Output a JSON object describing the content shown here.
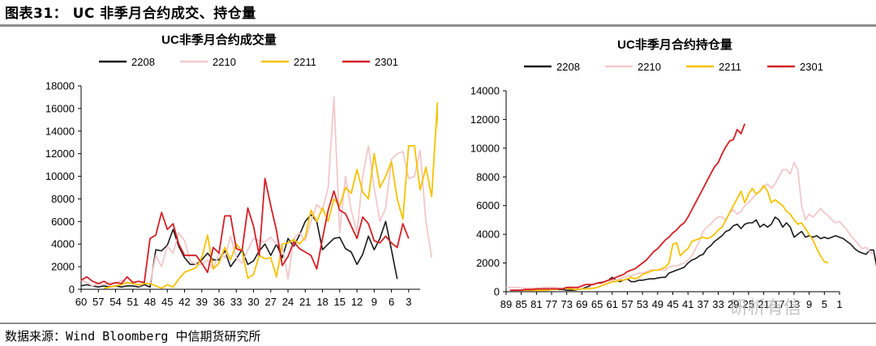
{
  "figure_title": "图表31： UC 非季月合约成交、持仓量",
  "source": "数据来源：Wind  Bloomberg  中信期货研究所",
  "watermark": "研析有信",
  "colors": {
    "2208": "#1a1a1a",
    "2210": "#f2c8cc",
    "2211": "#f7c200",
    "2301": "#d41f26"
  },
  "chart_data": [
    {
      "type": "line",
      "title": "UC非季月合约成交量",
      "xlabel": "",
      "ylabel": "",
      "ylim": [
        0,
        18000
      ],
      "yticks": [
        0,
        2000,
        4000,
        6000,
        8000,
        10000,
        12000,
        14000,
        16000,
        18000
      ],
      "x_tick_labels": [
        "60",
        "57",
        "54",
        "51",
        "48",
        "45",
        "42",
        "39",
        "36",
        "33",
        "30",
        "27",
        "24",
        "21",
        "18",
        "15",
        "12",
        "9",
        "6",
        "3"
      ],
      "x_start": 60,
      "x_end": 1,
      "legend": "top",
      "grid": false,
      "series": [
        {
          "name": "2208",
          "x_start": 60,
          "values": [
            300,
            400,
            300,
            200,
            300,
            200,
            300,
            200,
            300,
            300,
            200,
            400,
            200,
            3500,
            3400,
            3900,
            5300,
            3800,
            2800,
            2200,
            2200,
            2600,
            3200,
            2600,
            2600,
            3400,
            2000,
            2700,
            3500,
            2200,
            2500,
            3400,
            4000,
            3000,
            4000,
            2800,
            4500,
            3800,
            4800,
            6000,
            6600,
            6000,
            3500,
            4000,
            4500,
            4600,
            3600,
            3300,
            2200,
            3100,
            4700,
            3500,
            4500,
            6000,
            3500,
            900
          ]
        },
        {
          "name": "2210",
          "x_start": 60,
          "values": [
            800,
            600,
            300,
            500,
            400,
            600,
            500,
            800,
            500,
            600,
            300,
            500,
            500,
            3000,
            2000,
            3800,
            3200,
            5000,
            4300,
            2500,
            2200,
            2200,
            2600,
            1800,
            3200,
            2800,
            4700,
            2800,
            2300,
            3500,
            4500,
            4300,
            4200,
            4600,
            4000,
            3800,
            900,
            4500,
            5000,
            4300,
            6000,
            7500,
            7000,
            9000,
            17000,
            5000,
            10000,
            7000,
            5000,
            10000,
            12700,
            9000,
            6000,
            7200,
            11500,
            12000,
            12200,
            9800,
            10000,
            12300,
            6000,
            2800
          ]
        },
        {
          "name": "2211",
          "x_start": 56,
          "values": [
            100,
            200,
            300,
            400,
            600,
            500,
            400,
            500,
            500,
            300,
            100,
            400,
            200,
            900,
            1500,
            1700,
            1900,
            2800,
            4800,
            1800,
            2300,
            3700,
            2600,
            4000,
            3400,
            1000,
            1300,
            3000,
            2700,
            2800,
            1100,
            4000,
            4100,
            4400,
            4000,
            4600,
            7000,
            6000,
            7200,
            6000,
            8000,
            7400,
            9000,
            8500,
            10600,
            8600,
            8000,
            12000,
            9000,
            10000,
            11300,
            8000,
            6200,
            12700,
            12700,
            8800,
            10800,
            8200,
            16500,
            3500
          ]
        },
        {
          "name": "2301",
          "x_start": 60,
          "values": [
            800,
            1100,
            700,
            500,
            700,
            400,
            600,
            500,
            1100,
            600,
            700,
            600,
            4500,
            4800,
            6800,
            5300,
            5800,
            4000,
            3000,
            3000,
            3000,
            2300,
            1500,
            3700,
            3200,
            6500,
            6500,
            3600,
            3400,
            7200,
            5600,
            3000,
            9800,
            7400,
            5200,
            2100,
            2900,
            4200,
            3600,
            3300,
            3000,
            1800,
            4500,
            7000,
            8700,
            7000,
            6700,
            5600,
            4500,
            6400,
            5800,
            4300,
            4100,
            4700,
            4100,
            3700,
            5800,
            4500
          ]
        }
      ]
    },
    {
      "type": "line",
      "title": "UC非季月合约持仓量",
      "xlabel": "",
      "ylabel": "",
      "ylim": [
        0,
        14000
      ],
      "yticks": [
        0,
        2000,
        4000,
        6000,
        8000,
        10000,
        12000,
        14000
      ],
      "x_tick_labels": [
        "89",
        "85",
        "81",
        "77",
        "73",
        "69",
        "65",
        "61",
        "57",
        "53",
        "49",
        "45",
        "41",
        "37",
        "33",
        "29",
        "25",
        "21",
        "17",
        "13",
        "9",
        "5",
        "1"
      ],
      "x_start": 89,
      "x_end": 1,
      "legend": "top",
      "grid": false,
      "series": [
        {
          "name": "2208",
          "x_start": 87,
          "values": [
            100,
            100,
            100,
            150,
            150,
            150,
            200,
            200,
            200,
            200,
            200,
            200,
            150,
            150,
            100,
            100,
            100,
            150,
            200,
            300,
            400,
            500,
            600,
            650,
            700,
            800,
            1000,
            800,
            700,
            800,
            900,
            700,
            700,
            800,
            800,
            850,
            900,
            900,
            950,
            1000,
            1000,
            1300,
            1400,
            1500,
            1600,
            1700,
            2000,
            2200,
            2300,
            2500,
            2600,
            3000,
            3200,
            3500,
            3700,
            3900,
            4200,
            4300,
            4600,
            4700,
            4400,
            4700,
            4800,
            4800,
            5000,
            4500,
            4700,
            4500,
            4700,
            5200,
            5000,
            4500,
            4800,
            4500,
            3800,
            4000,
            4200,
            3800,
            3900,
            3800,
            3900,
            3700,
            3800,
            3700,
            3800,
            3900,
            3800,
            3700,
            3500,
            3300,
            3000,
            2800,
            2700,
            2600,
            2900,
            2900,
            1500
          ]
        },
        {
          "name": "2210",
          "x_start": 89,
          "values": [
            300,
            300,
            300,
            300,
            250,
            250,
            250,
            250,
            250,
            250,
            300,
            300,
            300,
            300,
            250,
            250,
            200,
            200,
            200,
            200,
            200,
            200,
            300,
            500,
            600,
            600,
            700,
            800,
            800,
            800,
            900,
            1000,
            1100,
            1100,
            1200,
            1300,
            1300,
            1400,
            1500,
            1500,
            1500,
            1500,
            1500,
            1700,
            1800,
            1800,
            1900,
            2000,
            2200,
            2500,
            3000,
            3500,
            4200,
            4500,
            4700,
            5000,
            5200,
            5200,
            5000,
            5500,
            5700,
            5400,
            5600,
            6000,
            6200,
            6500,
            6800,
            7000,
            7300,
            7500,
            7200,
            7500,
            8000,
            8500,
            8500,
            8200,
            9000,
            8500,
            6000,
            5000,
            5400,
            5200,
            5500,
            5800,
            5500,
            5300,
            5000,
            4800,
            4900,
            4600,
            4300,
            3900,
            3600,
            3300,
            3000,
            3100,
            2800,
            2600
          ]
        },
        {
          "name": "2211",
          "x_start": 85,
          "values": [
            100,
            100,
            100,
            100,
            100,
            100,
            100,
            100,
            150,
            150,
            200,
            200,
            250,
            200,
            150,
            150,
            200,
            200,
            200,
            250,
            300,
            400,
            500,
            600,
            700,
            700,
            800,
            800,
            900,
            1000,
            900,
            1000,
            1200,
            1300,
            1400,
            1500,
            1500,
            1600,
            1700,
            2000,
            3300,
            3400,
            2500,
            2800,
            3000,
            3500,
            3600,
            3700,
            3800,
            3700,
            3800,
            4000,
            4300,
            4500,
            5000,
            5500,
            6000,
            6500,
            7000,
            6200,
            6800,
            7200,
            6800,
            7000,
            7400,
            7000,
            6200,
            6400,
            6200,
            6000,
            5600,
            5400,
            5000,
            4700,
            4800,
            4400,
            4000,
            3600,
            3000,
            2500,
            2100,
            2000
          ]
        },
        {
          "name": "2301",
          "x_start": 88,
          "values": [
            100,
            100,
            100,
            100,
            150,
            150,
            150,
            200,
            200,
            200,
            200,
            200,
            200,
            200,
            200,
            300,
            300,
            300,
            300,
            400,
            500,
            500,
            500,
            600,
            600,
            700,
            800,
            900,
            1000,
            1100,
            1200,
            1400,
            1500,
            1600,
            1800,
            2000,
            2200,
            2500,
            2800,
            3000,
            3300,
            3600,
            3800,
            4100,
            4300,
            4600,
            4800,
            5200,
            5700,
            6200,
            6700,
            7200,
            7700,
            8200,
            8700,
            9000,
            9600,
            10100,
            10500,
            10600,
            11300,
            11000,
            11700
          ]
        }
      ]
    }
  ]
}
